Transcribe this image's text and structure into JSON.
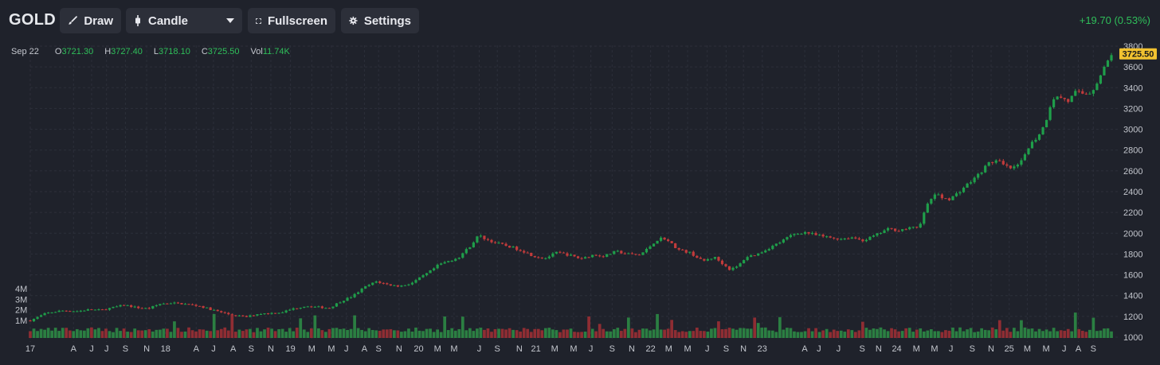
{
  "toolbar": {
    "symbol": "GOLD",
    "draw_label": "Draw",
    "chart_type_label": "Candle",
    "fullscreen_label": "Fullscreen",
    "settings_label": "Settings",
    "change": "+19.70 (0.53%)"
  },
  "ohlc": {
    "date": "Sep 22",
    "open_key": "O",
    "open": "3721.30",
    "high_key": "H",
    "high": "3727.40",
    "low_key": "L",
    "low": "3718.10",
    "close_key": "C",
    "close": "3725.50",
    "vol_key": "Vol",
    "vol": "11.74K"
  },
  "colors": {
    "up": "#1f9e4a",
    "down": "#c23b3b",
    "vol_up": "#2c8a45",
    "vol_down": "#9b2f34",
    "last_price_bg": "#f2c230",
    "background": "#1f222b",
    "grid": "#2c2f3a"
  },
  "chart_data": {
    "type": "candlestick",
    "title": "",
    "ylim": [
      1000,
      3800
    ],
    "y_ticks": [
      "1000",
      "1200",
      "1400",
      "1600",
      "1800",
      "2000",
      "2200",
      "2400",
      "2600",
      "2800",
      "3000",
      "3200",
      "3400",
      "3600",
      "3800"
    ],
    "volume_ticks": [
      "1M",
      "2M",
      "3M",
      "4M"
    ],
    "volume_ylim": [
      0,
      4000000
    ],
    "last_price": "3725.50",
    "x_tick_labels": [
      "17",
      "A",
      "J",
      "J",
      "S",
      "N",
      "18",
      "A",
      "J",
      "A",
      "S",
      "N",
      "19",
      "M",
      "M",
      "J",
      "A",
      "S",
      "N",
      "20",
      "M",
      "M",
      "J",
      "S",
      "N",
      "21",
      "M",
      "M",
      "J",
      "S",
      "N",
      "22",
      "M",
      "M",
      "J",
      "S",
      "N",
      "23",
      "A",
      "J",
      "J",
      "S",
      "N",
      "24",
      "M",
      "M",
      "J",
      "S",
      "N",
      "25",
      "M",
      "M",
      "J",
      "A",
      "S"
    ],
    "x_tick_fracs": [
      0.0,
      0.055,
      0.078,
      0.097,
      0.121,
      0.148,
      0.172,
      0.211,
      0.233,
      0.258,
      0.281,
      0.306,
      0.331,
      0.358,
      0.383,
      0.402,
      0.425,
      0.443,
      0.469,
      0.494,
      0.518,
      0.539,
      0.571,
      0.594,
      0.622,
      0.643,
      0.667,
      0.691,
      0.713,
      0.74,
      0.765,
      0.789,
      0.812,
      0.836,
      0.861,
      0.885,
      0.907,
      0.931,
      0.985,
      1.003,
      1.028,
      1.058,
      1.079,
      1.102,
      1.127,
      1.15,
      1.171,
      1.198,
      1.222,
      1.245,
      1.268,
      1.292,
      1.315,
      1.333,
      1.352
    ],
    "close_path": [
      [
        0.0,
        1160
      ],
      [
        0.02,
        1230
      ],
      [
        0.04,
        1255
      ],
      [
        0.06,
        1250
      ],
      [
        0.075,
        1265
      ],
      [
        0.09,
        1260
      ],
      [
        0.105,
        1285
      ],
      [
        0.12,
        1310
      ],
      [
        0.135,
        1285
      ],
      [
        0.15,
        1275
      ],
      [
        0.165,
        1320
      ],
      [
        0.18,
        1330
      ],
      [
        0.195,
        1320
      ],
      [
        0.215,
        1300
      ],
      [
        0.235,
        1255
      ],
      [
        0.255,
        1215
      ],
      [
        0.275,
        1195
      ],
      [
        0.29,
        1225
      ],
      [
        0.305,
        1230
      ],
      [
        0.32,
        1240
      ],
      [
        0.335,
        1275
      ],
      [
        0.35,
        1300
      ],
      [
        0.365,
        1290
      ],
      [
        0.38,
        1280
      ],
      [
        0.395,
        1345
      ],
      [
        0.41,
        1395
      ],
      [
        0.425,
        1480
      ],
      [
        0.44,
        1535
      ],
      [
        0.455,
        1505
      ],
      [
        0.47,
        1490
      ],
      [
        0.485,
        1520
      ],
      [
        0.5,
        1590
      ],
      [
        0.51,
        1640
      ],
      [
        0.52,
        1700
      ],
      [
        0.53,
        1725
      ],
      [
        0.545,
        1770
      ],
      [
        0.56,
        1880
      ],
      [
        0.57,
        1980
      ],
      [
        0.58,
        1940
      ],
      [
        0.595,
        1900
      ],
      [
        0.61,
        1870
      ],
      [
        0.625,
        1835
      ],
      [
        0.64,
        1780
      ],
      [
        0.655,
        1760
      ],
      [
        0.67,
        1815
      ],
      [
        0.685,
        1790
      ],
      [
        0.7,
        1755
      ],
      [
        0.715,
        1790
      ],
      [
        0.73,
        1780
      ],
      [
        0.745,
        1825
      ],
      [
        0.76,
        1800
      ],
      [
        0.775,
        1790
      ],
      [
        0.785,
        1850
      ],
      [
        0.795,
        1925
      ],
      [
        0.805,
        1960
      ],
      [
        0.815,
        1900
      ],
      [
        0.825,
        1840
      ],
      [
        0.84,
        1810
      ],
      [
        0.855,
        1730
      ],
      [
        0.87,
        1770
      ],
      [
        0.88,
        1710
      ],
      [
        0.89,
        1650
      ],
      [
        0.9,
        1680
      ],
      [
        0.91,
        1770
      ],
      [
        0.925,
        1800
      ],
      [
        0.94,
        1860
      ],
      [
        0.955,
        1920
      ],
      [
        0.97,
        1990
      ],
      [
        0.985,
        2010
      ],
      [
        1.0,
        1980
      ],
      [
        1.015,
        1960
      ],
      [
        1.03,
        1945
      ],
      [
        1.045,
        1960
      ],
      [
        1.06,
        1930
      ],
      [
        1.075,
        1980
      ],
      [
        1.09,
        2040
      ],
      [
        1.105,
        2030
      ],
      [
        1.12,
        2050
      ],
      [
        1.13,
        2060
      ],
      [
        1.14,
        2260
      ],
      [
        1.15,
        2380
      ],
      [
        1.16,
        2340
      ],
      [
        1.17,
        2330
      ],
      [
        1.18,
        2390
      ],
      [
        1.19,
        2460
      ],
      [
        1.2,
        2520
      ],
      [
        1.21,
        2600
      ],
      [
        1.22,
        2680
      ],
      [
        1.23,
        2700
      ],
      [
        1.24,
        2640
      ],
      [
        1.25,
        2620
      ],
      [
        1.26,
        2680
      ],
      [
        1.27,
        2840
      ],
      [
        1.28,
        2920
      ],
      [
        1.29,
        3040
      ],
      [
        1.3,
        3300
      ],
      [
        1.31,
        3310
      ],
      [
        1.32,
        3270
      ],
      [
        1.33,
        3360
      ],
      [
        1.34,
        3340
      ],
      [
        1.35,
        3360
      ],
      [
        1.36,
        3500
      ],
      [
        1.375,
        3725.5
      ]
    ]
  }
}
